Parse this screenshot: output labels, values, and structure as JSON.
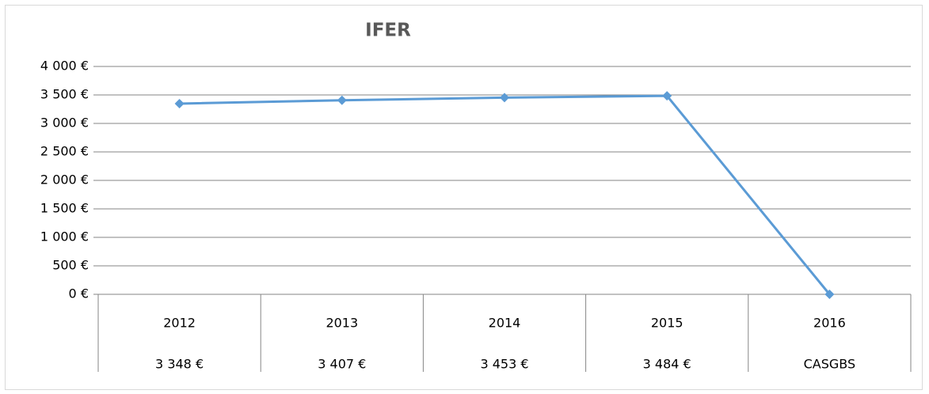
{
  "chart_data": {
    "type": "line",
    "title": "IFER",
    "categories": [
      "2012",
      "2013",
      "2014",
      "2015",
      "2016"
    ],
    "values": [
      3348,
      3407,
      3453,
      3484,
      0
    ],
    "data_table": [
      "3 348 €",
      "3 407 €",
      "3 453 €",
      "3 484 €",
      "CASGBS"
    ],
    "color": "#5b9bd5",
    "ylim": [
      0,
      4000
    ],
    "yticks": [
      {
        "value": 0,
        "label": "0 €"
      },
      {
        "value": 500,
        "label": "500 €"
      },
      {
        "value": 1000,
        "label": "1 000 €"
      },
      {
        "value": 1500,
        "label": "1 500 €"
      },
      {
        "value": 2000,
        "label": "2 000 €"
      },
      {
        "value": 2500,
        "label": "2 500 €"
      },
      {
        "value": 3000,
        "label": "3 000 €"
      },
      {
        "value": 3500,
        "label": "3 500 €"
      },
      {
        "value": 4000,
        "label": "4 000 €"
      }
    ],
    "grid": true
  }
}
